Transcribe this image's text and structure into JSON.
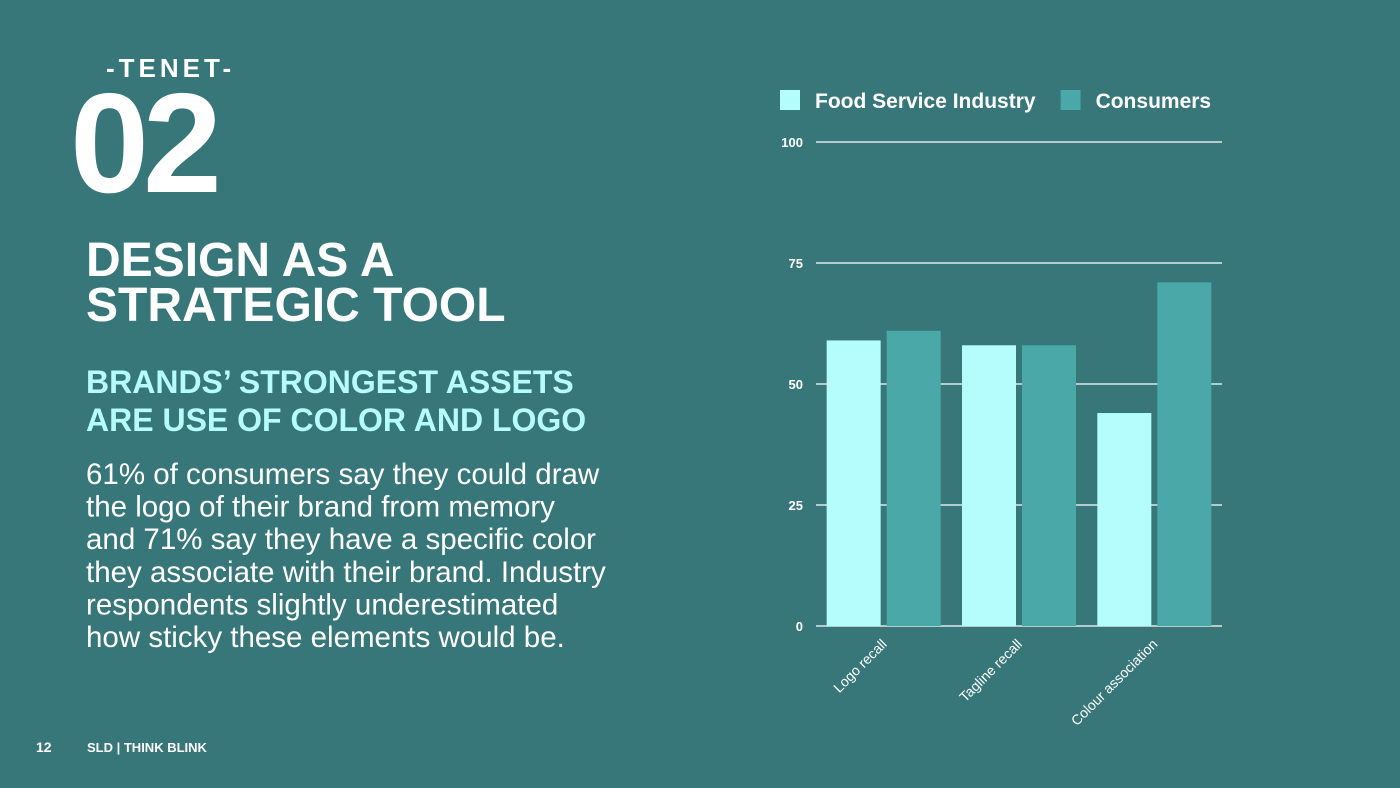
{
  "slide": {
    "kicker": "-TENET-",
    "number": "02",
    "title_lines": [
      "DESIGN AS A",
      "STRATEGIC TOOL"
    ],
    "subtitle_lines": [
      "BRANDS’ STRONGEST ASSETS",
      "ARE USE OF COLOR AND LOGO"
    ],
    "body_lines": [
      "61% of consumers say they could draw",
      "the logo of their brand from memory",
      "and 71% say they have a specific color",
      "they associate with their brand. Industry",
      "respondents slightly underestimated",
      "how sticky these elements would be."
    ],
    "page_number": "12",
    "footer": "SLD | THINK BLINK"
  },
  "chart_data": {
    "type": "bar",
    "categories": [
      "Logo recall",
      "Tagline recall",
      "Colour association"
    ],
    "series": [
      {
        "name": "Food Service Industry",
        "color": "#b5fcfc",
        "values": [
          59,
          58,
          44
        ]
      },
      {
        "name": "Consumers",
        "color": "#4aa8a8",
        "values": [
          61,
          58,
          71
        ]
      }
    ],
    "ylim": [
      0,
      100
    ],
    "yticks": [
      0,
      25,
      50,
      75,
      100
    ],
    "grid": true,
    "legend": "top"
  }
}
